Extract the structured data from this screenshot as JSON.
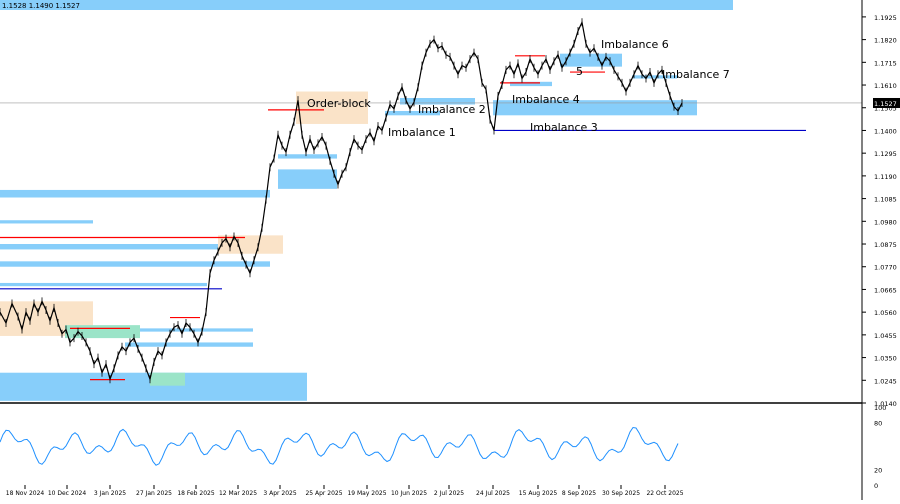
{
  "header": {
    "ohlc": "1.1528 1.1490 1.1527"
  },
  "chart_data": {
    "type": "candlestick",
    "title": "",
    "xlabel": "",
    "ylabel": "",
    "ylim": [
      1.014,
      1.198
    ],
    "grid": false,
    "current_price": 1.1527,
    "y_ticks": [
      1.1925,
      1.182,
      1.1715,
      1.161,
      1.1505,
      1.14,
      1.1295,
      1.119,
      1.1085,
      1.098,
      1.0875,
      1.077,
      1.0665,
      1.056,
      1.0455,
      1.035,
      1.0245,
      1.014
    ],
    "x_ticks": [
      "18 Nov 2024",
      "10 Dec 2024",
      "3 Jan 2025",
      "27 Jan 2025",
      "18 Feb 2025",
      "12 Mar 2025",
      "3 Apr 2025",
      "25 Apr 2025",
      "19 May 2025",
      "10 Jun 2025",
      "2 Jul 2025",
      "24 Jul 2025",
      "15 Aug 2025",
      "8 Sep 2025",
      "30 Sep 2025",
      "22 Oct 2025"
    ],
    "price_path": [
      [
        0,
        1.056
      ],
      [
        6,
        1.051
      ],
      [
        12,
        1.06
      ],
      [
        18,
        1.054
      ],
      [
        22,
        1.048
      ],
      [
        26,
        1.056
      ],
      [
        30,
        1.052
      ],
      [
        34,
        1.06
      ],
      [
        38,
        1.056
      ],
      [
        42,
        1.061
      ],
      [
        46,
        1.057
      ],
      [
        50,
        1.052
      ],
      [
        54,
        1.058
      ],
      [
        58,
        1.051
      ],
      [
        62,
        1.046
      ],
      [
        66,
        1.048
      ],
      [
        70,
        1.042
      ],
      [
        74,
        1.044
      ],
      [
        78,
        1.047
      ],
      [
        82,
        1.045
      ],
      [
        86,
        1.042
      ],
      [
        90,
        1.038
      ],
      [
        94,
        1.032
      ],
      [
        98,
        1.035
      ],
      [
        102,
        1.028
      ],
      [
        106,
        1.032
      ],
      [
        110,
        1.025
      ],
      [
        114,
        1.03
      ],
      [
        118,
        1.036
      ],
      [
        122,
        1.04
      ],
      [
        126,
        1.038
      ],
      [
        130,
        1.042
      ],
      [
        134,
        1.044
      ],
      [
        138,
        1.039
      ],
      [
        142,
        1.035
      ],
      [
        146,
        1.03
      ],
      [
        150,
        1.025
      ],
      [
        154,
        1.033
      ],
      [
        158,
        1.038
      ],
      [
        162,
        1.036
      ],
      [
        166,
        1.042
      ],
      [
        170,
        1.046
      ],
      [
        174,
        1.049
      ],
      [
        178,
        1.05
      ],
      [
        182,
        1.046
      ],
      [
        186,
        1.051
      ],
      [
        190,
        1.049
      ],
      [
        194,
        1.046
      ],
      [
        198,
        1.042
      ],
      [
        202,
        1.047
      ],
      [
        206,
        1.056
      ],
      [
        210,
        1.074
      ],
      [
        214,
        1.08
      ],
      [
        218,
        1.084
      ],
      [
        222,
        1.088
      ],
      [
        226,
        1.09
      ],
      [
        230,
        1.086
      ],
      [
        234,
        1.091
      ],
      [
        238,
        1.088
      ],
      [
        242,
        1.082
      ],
      [
        246,
        1.078
      ],
      [
        250,
        1.074
      ],
      [
        254,
        1.08
      ],
      [
        258,
        1.086
      ],
      [
        262,
        1.095
      ],
      [
        266,
        1.108
      ],
      [
        270,
        1.123
      ],
      [
        274,
        1.127
      ],
      [
        278,
        1.138
      ],
      [
        282,
        1.133
      ],
      [
        286,
        1.13
      ],
      [
        290,
        1.138
      ],
      [
        294,
        1.144
      ],
      [
        298,
        1.154
      ],
      [
        302,
        1.138
      ],
      [
        306,
        1.13
      ],
      [
        310,
        1.136
      ],
      [
        314,
        1.131
      ],
      [
        318,
        1.134
      ],
      [
        322,
        1.137
      ],
      [
        326,
        1.133
      ],
      [
        330,
        1.126
      ],
      [
        334,
        1.12
      ],
      [
        338,
        1.115
      ],
      [
        342,
        1.12
      ],
      [
        346,
        1.123
      ],
      [
        350,
        1.13
      ],
      [
        354,
        1.136
      ],
      [
        358,
        1.133
      ],
      [
        362,
        1.131
      ],
      [
        366,
        1.136
      ],
      [
        370,
        1.139
      ],
      [
        374,
        1.135
      ],
      [
        378,
        1.142
      ],
      [
        382,
        1.14
      ],
      [
        386,
        1.146
      ],
      [
        390,
        1.152
      ],
      [
        394,
        1.15
      ],
      [
        398,
        1.156
      ],
      [
        402,
        1.16
      ],
      [
        406,
        1.154
      ],
      [
        410,
        1.15
      ],
      [
        414,
        1.153
      ],
      [
        418,
        1.16
      ],
      [
        422,
        1.17
      ],
      [
        426,
        1.176
      ],
      [
        430,
        1.18
      ],
      [
        434,
        1.182
      ],
      [
        438,
        1.178
      ],
      [
        442,
        1.179
      ],
      [
        446,
        1.175
      ],
      [
        450,
        1.174
      ],
      [
        454,
        1.17
      ],
      [
        458,
        1.166
      ],
      [
        462,
        1.17
      ],
      [
        466,
        1.169
      ],
      [
        470,
        1.173
      ],
      [
        474,
        1.176
      ],
      [
        478,
        1.173
      ],
      [
        482,
        1.162
      ],
      [
        486,
        1.159
      ],
      [
        490,
        1.145
      ],
      [
        494,
        1.14
      ],
      [
        498,
        1.156
      ],
      [
        502,
        1.161
      ],
      [
        506,
        1.168
      ],
      [
        510,
        1.17
      ],
      [
        514,
        1.166
      ],
      [
        518,
        1.171
      ],
      [
        522,
        1.164
      ],
      [
        526,
        1.167
      ],
      [
        530,
        1.173
      ],
      [
        534,
        1.169
      ],
      [
        538,
        1.166
      ],
      [
        542,
        1.17
      ],
      [
        546,
        1.173
      ],
      [
        550,
        1.168
      ],
      [
        554,
        1.172
      ],
      [
        558,
        1.175
      ],
      [
        562,
        1.169
      ],
      [
        566,
        1.172
      ],
      [
        570,
        1.176
      ],
      [
        574,
        1.18
      ],
      [
        578,
        1.186
      ],
      [
        582,
        1.19
      ],
      [
        586,
        1.18
      ],
      [
        590,
        1.176
      ],
      [
        594,
        1.178
      ],
      [
        598,
        1.174
      ],
      [
        602,
        1.17
      ],
      [
        606,
        1.174
      ],
      [
        610,
        1.172
      ],
      [
        614,
        1.168
      ],
      [
        618,
        1.165
      ],
      [
        622,
        1.162
      ],
      [
        626,
        1.158
      ],
      [
        630,
        1.162
      ],
      [
        634,
        1.166
      ],
      [
        638,
        1.17
      ],
      [
        642,
        1.166
      ],
      [
        646,
        1.164
      ],
      [
        650,
        1.167
      ],
      [
        654,
        1.162
      ],
      [
        658,
        1.166
      ],
      [
        662,
        1.168
      ],
      [
        666,
        1.162
      ],
      [
        670,
        1.156
      ],
      [
        674,
        1.151
      ],
      [
        678,
        1.149
      ],
      [
        682,
        1.1527
      ]
    ],
    "rsi": {
      "labels": [
        "100",
        "80",
        "20",
        "0"
      ]
    },
    "annotations": [
      "Order-block",
      "Imbalance 1",
      "Imbalance 2",
      "Imbalance 3",
      "Imbalance 4",
      "5",
      "Imbalance 6",
      "Imbalance 7"
    ],
    "colors": {
      "zone_blue": "#87cefa",
      "zone_orange": "#fae3c8",
      "zone_green": "#9be4c8",
      "support": "#ff0000",
      "resistance": "#0000c8",
      "rsi_line": "#1e90ff",
      "price_bar": "#000000"
    }
  }
}
